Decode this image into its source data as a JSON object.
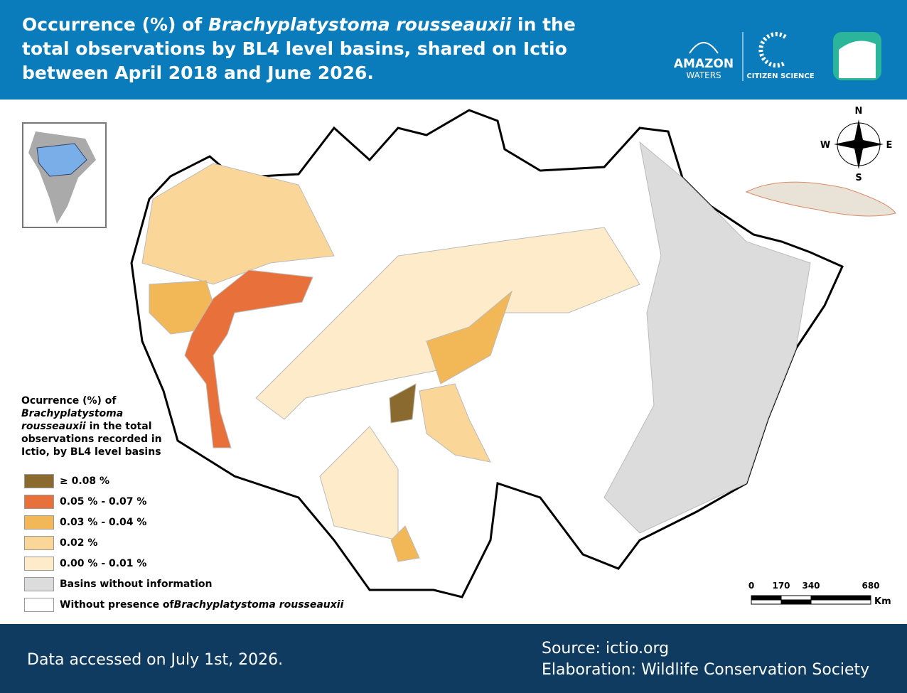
{
  "header": {
    "title": {
      "before": "Occurrence (%) of ",
      "species": "Brachyplatystoma rousseauxii",
      "after": " in the total observations by BL4 level basins, shared on Ictio between April 2018 and June 2026."
    },
    "logo_amazon": "AMAZON",
    "logo_waters": "WATERS",
    "logo_citizen": "CITIZEN SCIENCE"
  },
  "compass": {
    "n": "N",
    "s": "S",
    "e": "E",
    "w": "W"
  },
  "legend": {
    "title": {
      "before": "Ocurrence (%) of ",
      "species": "Brachyplatystoma rousseauxii",
      "after": " in the total observations recorded in Ictio, by BL4 level basins"
    },
    "items": [
      {
        "label": "≥ 0.08 %",
        "color": "#8a6a2e"
      },
      {
        "label": "0.05 % - 0.07 %",
        "color": "#e8703a"
      },
      {
        "label": "0.03 % - 0.04 %",
        "color": "#f2b757"
      },
      {
        "label": "0.02 %",
        "color": "#fbd699"
      },
      {
        "label": "0.00 % - 0.01 %",
        "color": "#fdebca"
      },
      {
        "label": "Basins without information",
        "color": "#dcdcdc"
      },
      {
        "label": "Without presence of ",
        "species": "Brachyplatystoma rousseauxii",
        "color": "#ffffff"
      }
    ]
  },
  "scale": {
    "ticks": [
      0,
      170,
      340,
      680
    ],
    "unit": "Km"
  },
  "footer": {
    "accessed": "Data accessed on July 1st, 2026.",
    "source": "Source: ictio.org",
    "elaboration": "Elaboration: Wildlife Conservation Society"
  }
}
